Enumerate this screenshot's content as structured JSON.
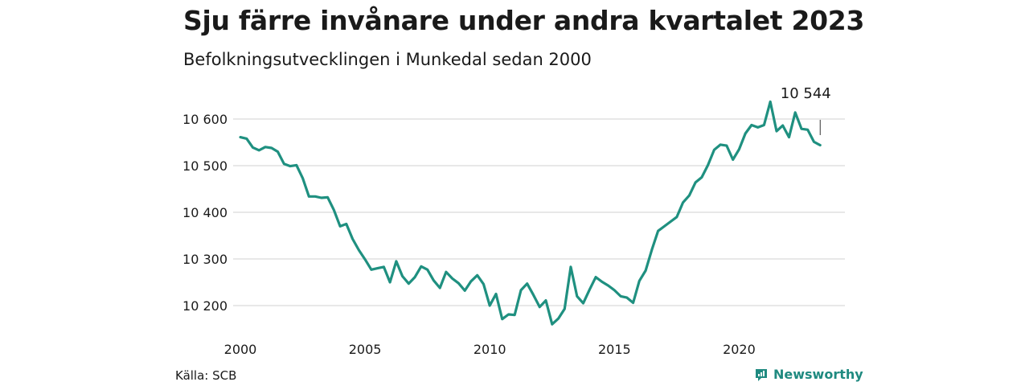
{
  "title": "Sju färre invånare under andra kvartalet 2023",
  "subtitle": "Befolkningsutvecklingen i Munkedal sedan 2000",
  "source": "Källa: SCB",
  "brand": "Newsworthy",
  "colors": {
    "line": "#1f9080",
    "grid": "#d9d9d9",
    "brand": "#1f8a80"
  },
  "chart_data": {
    "type": "line",
    "title": "Sju färre invånare under andra kvartalet 2023",
    "subtitle": "Befolkningsutvecklingen i Munkedal sedan 2000",
    "xlim": [
      2000,
      2023.5
    ],
    "ylim": [
      10140,
      10640
    ],
    "yticks": [
      10200,
      10300,
      10400,
      10500,
      10600
    ],
    "ytick_labels": [
      "10 200",
      "10 300",
      "10 400",
      "10 500",
      "10 600"
    ],
    "xticks": [
      2000,
      2005,
      2010,
      2015,
      2020
    ],
    "xtick_labels": [
      "2000",
      "2005",
      "2010",
      "2015",
      "2020"
    ],
    "grid": true,
    "legend": "none",
    "annotation": {
      "text": "10 544",
      "x": 2023.25,
      "y": 10544
    },
    "series": [
      {
        "x": [
          2000,
          2000.25,
          2000.5,
          2000.75,
          2001,
          2001.25,
          2001.5,
          2001.75,
          2002,
          2002.25,
          2002.5,
          2002.75,
          2003,
          2003.25,
          2003.5,
          2003.75,
          2004,
          2004.25,
          2004.5,
          2004.75,
          2005,
          2005.25,
          2005.5,
          2005.75,
          2006,
          2006.25,
          2006.5,
          2006.75,
          2007,
          2007.25,
          2007.5,
          2007.75,
          2008,
          2008.25,
          2008.5,
          2008.75,
          2009,
          2009.25,
          2009.5,
          2009.75,
          2010,
          2010.25,
          2010.5,
          2010.75,
          2011,
          2011.25,
          2011.5,
          2011.75,
          2012,
          2012.25,
          2012.5,
          2012.75,
          2013,
          2013.25,
          2013.5,
          2013.75,
          2014,
          2014.25,
          2014.5,
          2014.75,
          2015,
          2015.25,
          2015.5,
          2015.75,
          2016,
          2016.25,
          2016.5,
          2016.75,
          2017,
          2017.25,
          2017.5,
          2017.75,
          2018,
          2018.25,
          2018.5,
          2018.75,
          2019,
          2019.25,
          2019.5,
          2019.75,
          2020,
          2020.25,
          2020.5,
          2020.75,
          2021,
          2021.25,
          2021.5,
          2021.75,
          2022,
          2022.25,
          2022.5,
          2022.75,
          2023,
          2023.25
        ],
        "values": [
          10561,
          10558,
          10539,
          10533,
          10540,
          10538,
          10530,
          10504,
          10499,
          10501,
          10473,
          10434,
          10434,
          10431,
          10432,
          10405,
          10370,
          10375,
          10343,
          10319,
          10299,
          10277,
          10280,
          10283,
          10250,
          10295,
          10263,
          10247,
          10261,
          10284,
          10277,
          10254,
          10238,
          10272,
          10258,
          10248,
          10232,
          10252,
          10265,
          10246,
          10200,
          10225,
          10171,
          10181,
          10180,
          10233,
          10247,
          10223,
          10197,
          10211,
          10160,
          10172,
          10193,
          10283,
          10220,
          10205,
          10234,
          10261,
          10251,
          10243,
          10233,
          10220,
          10217,
          10206,
          10253,
          10275,
          10320,
          10360,
          10370,
          10380,
          10390,
          10421,
          10436,
          10464,
          10475,
          10501,
          10534,
          10545,
          10543,
          10513,
          10535,
          10569,
          10587,
          10582,
          10587,
          10637,
          10574,
          10586,
          10561,
          10614,
          10579,
          10577,
          10551,
          10544
        ]
      }
    ]
  }
}
